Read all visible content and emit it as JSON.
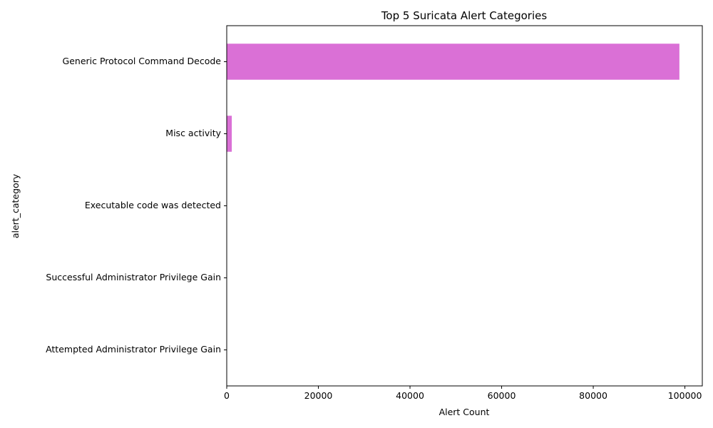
{
  "chart_data": {
    "type": "bar",
    "orientation": "horizontal",
    "title": "Top 5 Suricata Alert Categories",
    "xlabel": "Alert Count",
    "ylabel": "alert_category",
    "categories": [
      "Generic Protocol Command Decode",
      "Misc activity",
      "Executable code was detected",
      "Successful Administrator Privilege Gain",
      "Attempted Administrator Privilege Gain"
    ],
    "values": [
      98800,
      1100,
      20,
      10,
      5
    ],
    "xlim": [
      0,
      103800
    ],
    "xticks": [
      0,
      20000,
      40000,
      60000,
      80000,
      100000
    ],
    "xtick_labels": [
      "0",
      "20000",
      "40000",
      "60000",
      "80000",
      "100000"
    ],
    "bar_color": "#da70d6",
    "grid": false,
    "legend": false
  }
}
